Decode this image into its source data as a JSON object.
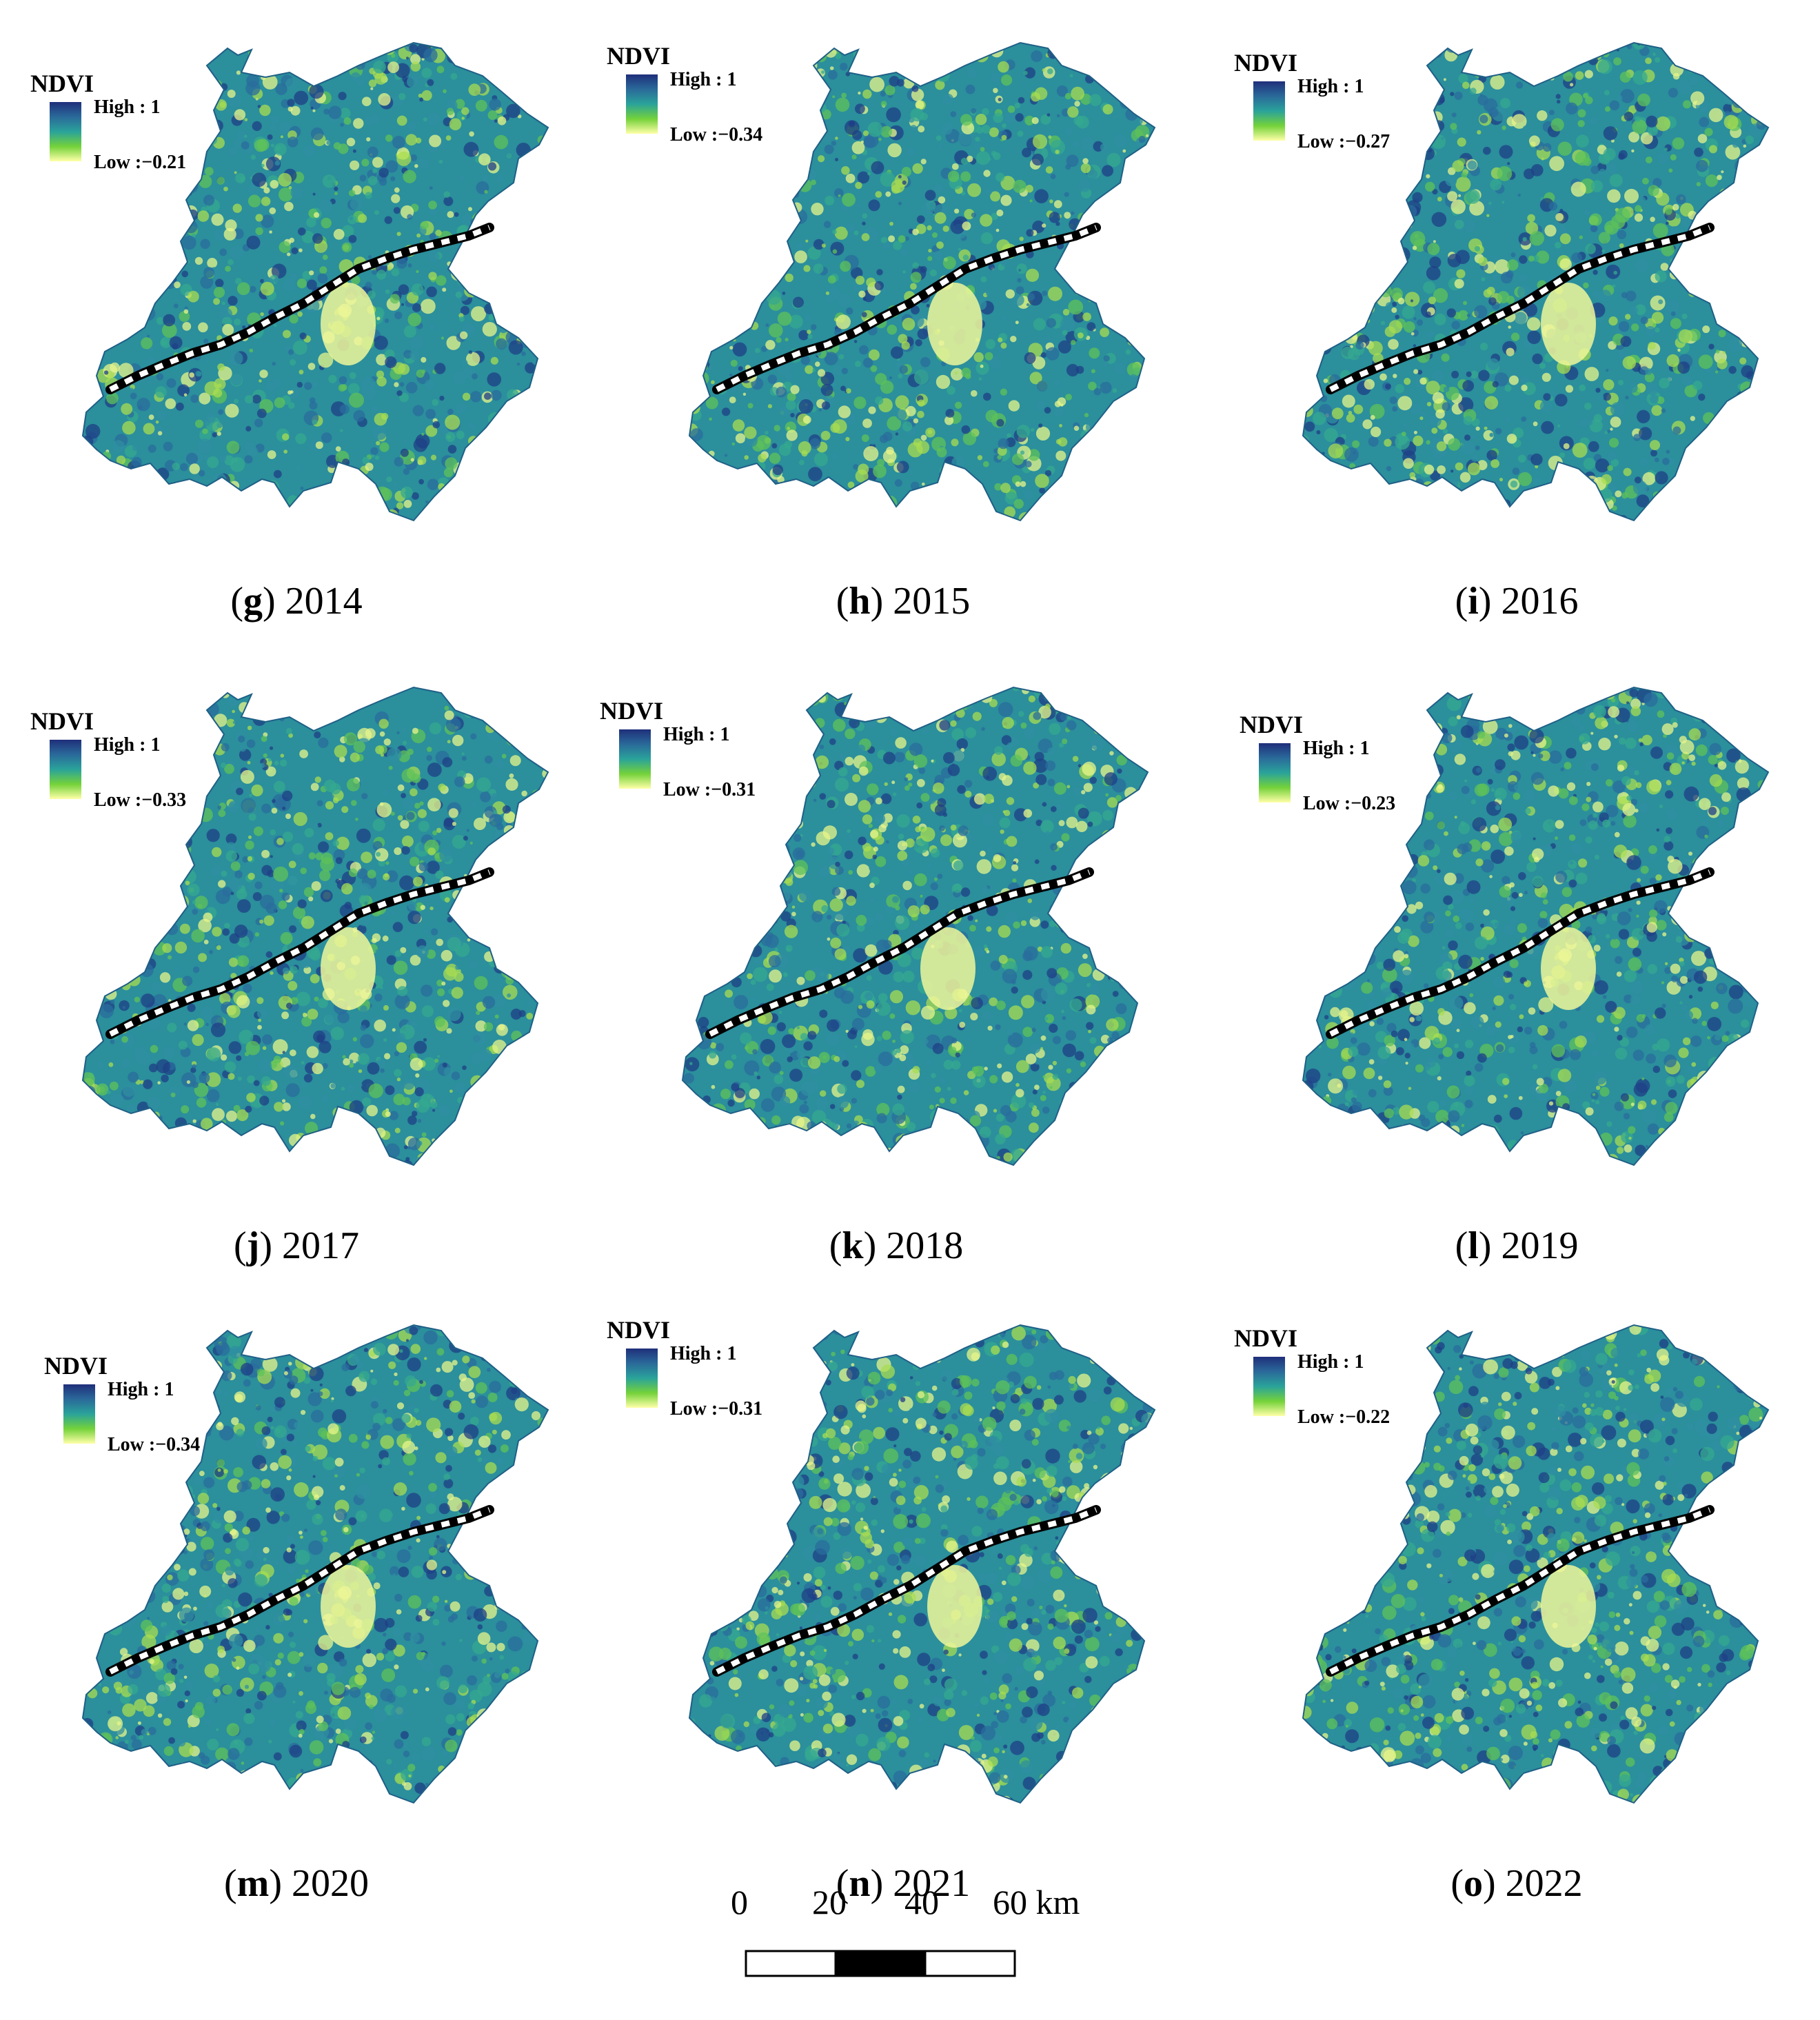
{
  "panels": [
    {
      "letter": "g",
      "year": "2014",
      "legend_title": "NDVI",
      "high": "High : 1",
      "low": "Low :−0.21"
    },
    {
      "letter": "h",
      "year": "2015",
      "legend_title": "NDVI",
      "high": "High : 1",
      "low": "Low :−0.34"
    },
    {
      "letter": "i",
      "year": "2016",
      "legend_title": "NDVI",
      "high": "High : 1",
      "low": "Low :−0.27"
    },
    {
      "letter": "j",
      "year": "2017",
      "legend_title": "NDVI",
      "high": "High : 1",
      "low": "Low :−0.33"
    },
    {
      "letter": "k",
      "year": "2018",
      "legend_title": "NDVI",
      "high": "High : 1",
      "low": "Low :−0.31"
    },
    {
      "letter": "l",
      "year": "2019",
      "legend_title": "NDVI",
      "high": "High : 1",
      "low": "Low :−0.23"
    },
    {
      "letter": "m",
      "year": "2020",
      "legend_title": "NDVI",
      "high": "High : 1",
      "low": "Low :−0.34"
    },
    {
      "letter": "n",
      "year": "2021",
      "legend_title": "NDVI",
      "high": "High : 1",
      "low": "Low :−0.31"
    },
    {
      "letter": "o",
      "year": "2022",
      "legend_title": "NDVI",
      "high": "High : 1",
      "low": "Low :−0.22"
    }
  ],
  "scale_bar": {
    "labels": [
      "0",
      "20",
      "40",
      "60 km"
    ]
  },
  "colors": {
    "ndvi_high": "#1f2f7a",
    "ndvi_mid": "#2aa39a",
    "ndvi_low": "#ffffa8",
    "boundary_dash": "#000000"
  }
}
